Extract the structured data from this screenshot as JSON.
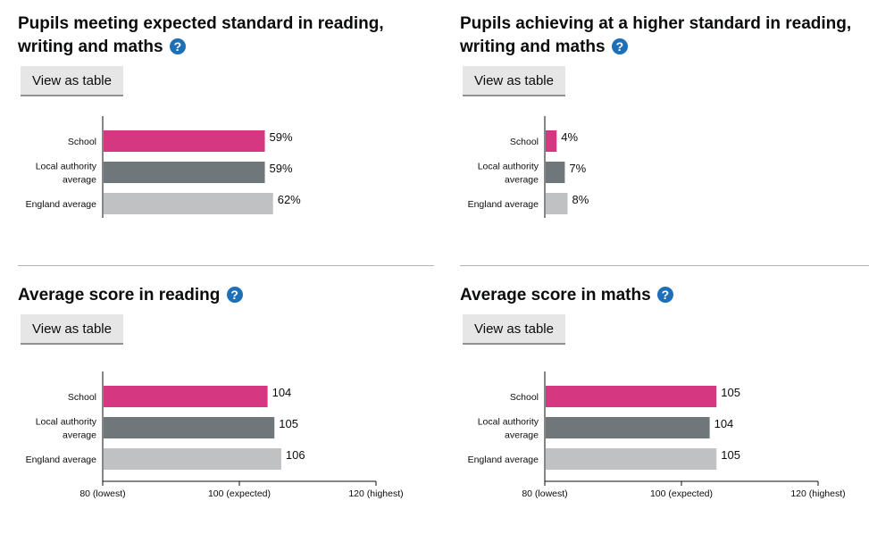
{
  "icons": {
    "help": "question-mark-circle-icon"
  },
  "colors": {
    "school": "#d53880",
    "local_authority": "#6f777b",
    "england": "#bfc1c3",
    "help_icon": "#1d70b8",
    "axis": "#0b0c0c"
  },
  "panels": [
    {
      "title": "Pupils meeting expected standard in reading, writing and maths",
      "help_symbol": "?",
      "view_table_label": "View as table"
    },
    {
      "title": "Pupils achieving at a higher standard in reading, writing and maths",
      "help_symbol": "?",
      "view_table_label": "View as table"
    },
    {
      "title": "Average score in reading",
      "help_symbol": "?",
      "view_table_label": "View as table"
    },
    {
      "title": "Average score in maths",
      "help_symbol": "?",
      "view_table_label": "View as table"
    }
  ],
  "chart_data": [
    {
      "type": "bar",
      "orientation": "horizontal",
      "title": "Pupils meeting expected standard in reading, writing and maths",
      "categories": [
        [
          "School"
        ],
        [
          "Local authority",
          "average"
        ],
        [
          "England average"
        ]
      ],
      "values": [
        59,
        59,
        62
      ],
      "value_labels": [
        "59%",
        "59%",
        "62%"
      ],
      "unit": "%",
      "xlim": [
        0,
        100
      ],
      "show_x_axis": false
    },
    {
      "type": "bar",
      "orientation": "horizontal",
      "title": "Pupils achieving at a higher standard in reading, writing and maths",
      "categories": [
        [
          "School"
        ],
        [
          "Local authority",
          "average"
        ],
        [
          "England average"
        ]
      ],
      "values": [
        4,
        7,
        8
      ],
      "value_labels": [
        "4%",
        "7%",
        "8%"
      ],
      "unit": "%",
      "xlim": [
        0,
        100
      ],
      "show_x_axis": false
    },
    {
      "type": "bar",
      "orientation": "horizontal",
      "title": "Average score in reading",
      "categories": [
        [
          "School"
        ],
        [
          "Local authority",
          "average"
        ],
        [
          "England average"
        ]
      ],
      "values": [
        104,
        105,
        106
      ],
      "value_labels": [
        "104",
        "105",
        "106"
      ],
      "xlim": [
        80,
        120
      ],
      "show_x_axis": true,
      "ticks": [
        80,
        100,
        120
      ],
      "tick_labels": [
        "80 (lowest)",
        "100 (expected)",
        "120 (highest)"
      ]
    },
    {
      "type": "bar",
      "orientation": "horizontal",
      "title": "Average score in maths",
      "categories": [
        [
          "School"
        ],
        [
          "Local authority",
          "average"
        ],
        [
          "England average"
        ]
      ],
      "values": [
        105,
        104,
        105
      ],
      "value_labels": [
        "105",
        "104",
        "105"
      ],
      "xlim": [
        80,
        120
      ],
      "show_x_axis": true,
      "ticks": [
        80,
        100,
        120
      ],
      "tick_labels": [
        "80 (lowest)",
        "100 (expected)",
        "120 (highest)"
      ]
    }
  ]
}
